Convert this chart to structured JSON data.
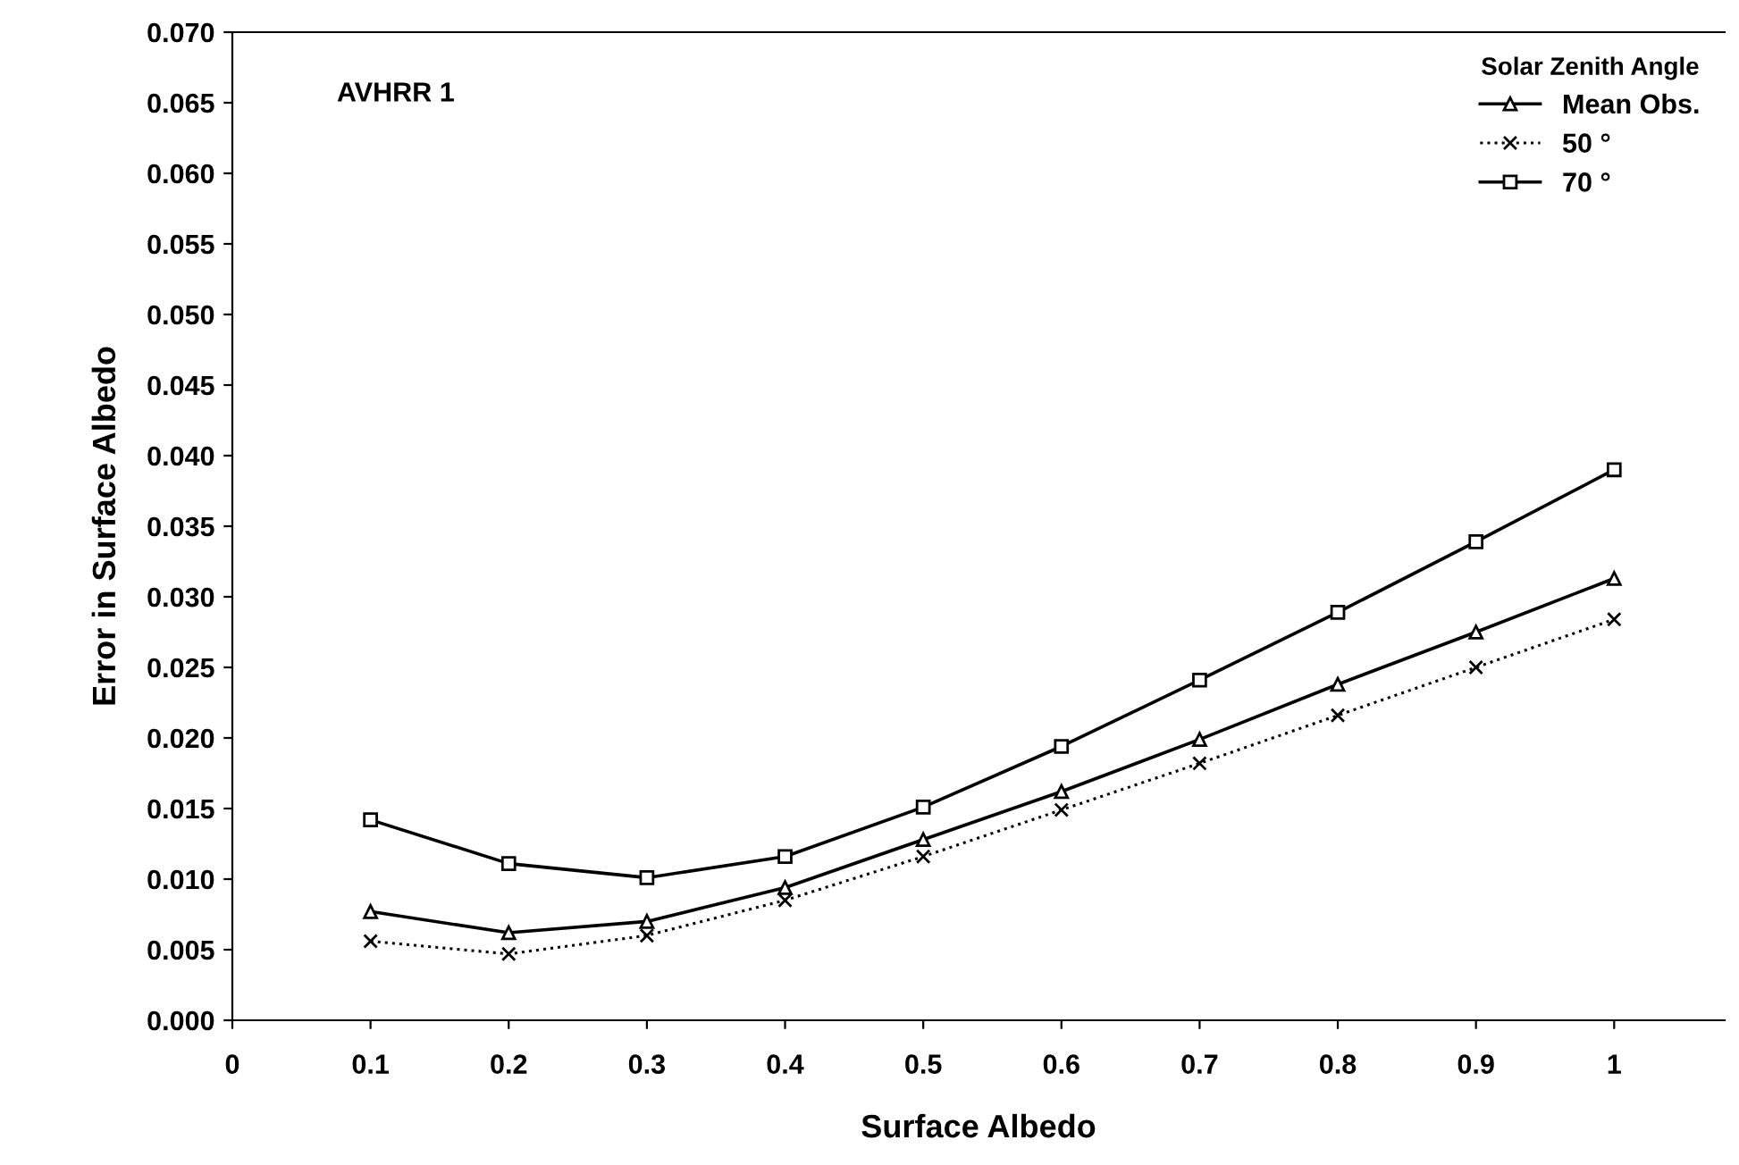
{
  "chart_data": {
    "type": "line",
    "xlabel": "Surface Albedo",
    "ylabel": "Error in Surface Albedo",
    "legend_title": "Solar Zenith Angle",
    "annotations": [
      "AVHRR 1"
    ],
    "x": [
      0.1,
      0.2,
      0.3,
      0.4,
      0.5,
      0.6,
      0.7,
      0.8,
      0.9,
      1
    ],
    "series": [
      {
        "name": "Mean Obs.",
        "color": "#000000",
        "marker": "triangle",
        "line_style": "solid",
        "values": [
          0.0077,
          0.0062,
          0.007,
          0.0094,
          0.0128,
          0.0162,
          0.0199,
          0.0238,
          0.0275,
          0.0313
        ]
      },
      {
        "name": "50 °",
        "color": "#000000",
        "marker": "cross",
        "line_style": "dotted",
        "values": [
          0.0056,
          0.0047,
          0.006,
          0.0085,
          0.0116,
          0.0149,
          0.0182,
          0.0216,
          0.025,
          0.0284
        ]
      },
      {
        "name": "70 °",
        "color": "#000000",
        "marker": "square",
        "line_style": "solid",
        "values": [
          0.0142,
          0.0111,
          0.0101,
          0.0116,
          0.0151,
          0.0194,
          0.0241,
          0.0289,
          0.0339,
          0.039
        ]
      }
    ],
    "xlim": [
      0,
      1.08
    ],
    "xticks": [
      0,
      0.1,
      0.2,
      0.3,
      0.4,
      0.5,
      0.6,
      0.7,
      0.8,
      0.9,
      1
    ],
    "ylim": [
      0,
      0.07
    ],
    "yticks": [
      {
        "value": 0,
        "label": "0.000"
      },
      {
        "value": 0.005,
        "label": "0.005"
      },
      {
        "value": 0.01,
        "label": "0.010"
      },
      {
        "value": 0.015,
        "label": "0.015"
      },
      {
        "value": 0.02,
        "label": "0.020"
      },
      {
        "value": 0.025,
        "label": "0.025"
      },
      {
        "value": 0.03,
        "label": "0.030"
      },
      {
        "value": 0.035,
        "label": "0.035"
      },
      {
        "value": 0.04,
        "label": "0.040"
      },
      {
        "value": 0.045,
        "label": "0.045"
      },
      {
        "value": 0.05,
        "label": "0.050"
      },
      {
        "value": 0.055,
        "label": "0.055"
      },
      {
        "value": 0.06,
        "label": "0.060"
      },
      {
        "value": 0.065,
        "label": "0.065"
      },
      {
        "value": 0.07,
        "label": "0.070"
      }
    ],
    "grid": false,
    "legend": "top right"
  }
}
